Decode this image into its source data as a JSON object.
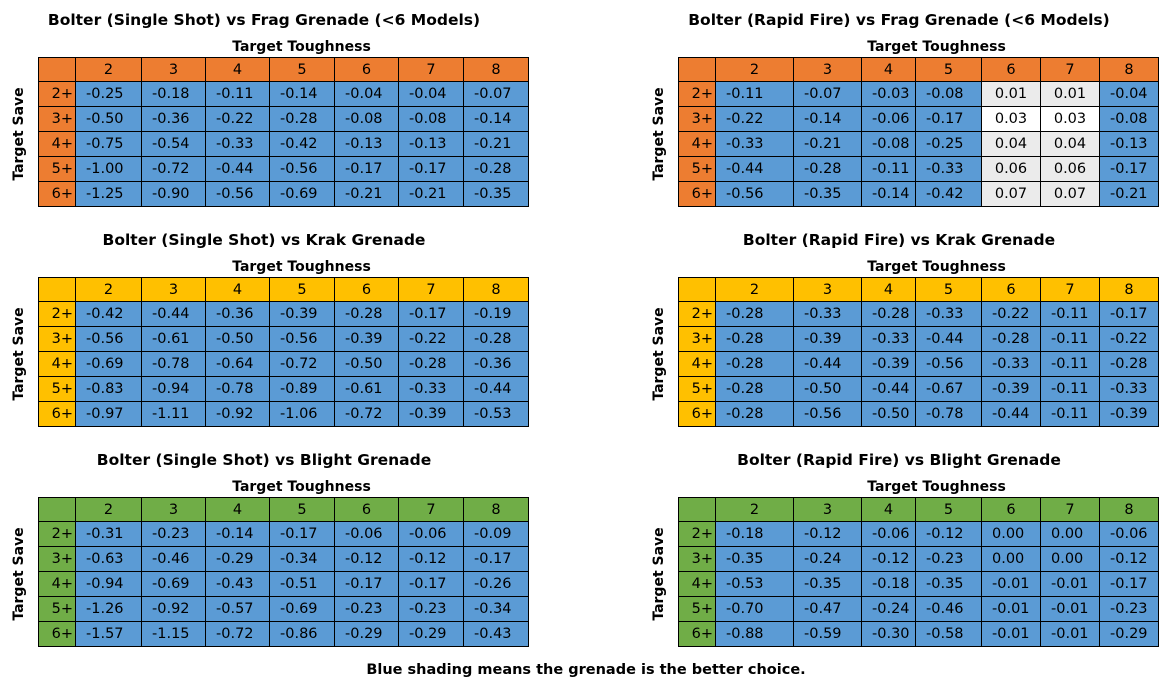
{
  "toughness_label": "Target Toughness",
  "save_label": "Target Save",
  "footer": "Blue shading means the grenade is the better choice.",
  "columns": [
    "2",
    "3",
    "4",
    "5",
    "6",
    "7",
    "8"
  ],
  "rows": [
    "2+",
    "3+",
    "4+",
    "5+",
    "6+"
  ],
  "colors": {
    "frag": "#ed7d31",
    "krak": "#ffc000",
    "blight": "#70ad47",
    "better": "#5b9bd5",
    "worse": "#ebebeb"
  },
  "panels": [
    {
      "id": "single-frag",
      "title": "Bolter (Single Shot) vs Frag Grenade (<6 Models)",
      "color": "frag",
      "values": [
        [
          "-0.25",
          "-0.18",
          "-0.11",
          "-0.14",
          "-0.04",
          "-0.04",
          "-0.07"
        ],
        [
          "-0.50",
          "-0.36",
          "-0.22",
          "-0.28",
          "-0.08",
          "-0.08",
          "-0.14"
        ],
        [
          "-0.75",
          "-0.54",
          "-0.33",
          "-0.42",
          "-0.13",
          "-0.13",
          "-0.21"
        ],
        [
          "-1.00",
          "-0.72",
          "-0.44",
          "-0.56",
          "-0.17",
          "-0.17",
          "-0.28"
        ],
        [
          "-1.25",
          "-0.90",
          "-0.56",
          "-0.69",
          "-0.21",
          "-0.21",
          "-0.35"
        ]
      ]
    },
    {
      "id": "rapid-frag",
      "title": "Bolter (Rapid Fire) vs Frag Grenade (<6 Models)",
      "color": "frag",
      "values": [
        [
          "-0.11",
          "-0.07",
          "-0.03",
          "-0.08",
          "0.01",
          "0.01",
          "-0.04"
        ],
        [
          "-0.22",
          "-0.14",
          "-0.06",
          "-0.17",
          "0.03",
          "0.03",
          "-0.08"
        ],
        [
          "-0.33",
          "-0.21",
          "-0.08",
          "-0.25",
          "0.04",
          "0.04",
          "-0.13"
        ],
        [
          "-0.44",
          "-0.28",
          "-0.11",
          "-0.33",
          "0.06",
          "0.06",
          "-0.17"
        ],
        [
          "-0.56",
          "-0.35",
          "-0.14",
          "-0.42",
          "0.07",
          "0.07",
          "-0.21"
        ]
      ]
    },
    {
      "id": "single-krak",
      "title": "Bolter (Single Shot) vs Krak Grenade",
      "color": "krak",
      "values": [
        [
          "-0.42",
          "-0.44",
          "-0.36",
          "-0.39",
          "-0.28",
          "-0.17",
          "-0.19"
        ],
        [
          "-0.56",
          "-0.61",
          "-0.50",
          "-0.56",
          "-0.39",
          "-0.22",
          "-0.28"
        ],
        [
          "-0.69",
          "-0.78",
          "-0.64",
          "-0.72",
          "-0.50",
          "-0.28",
          "-0.36"
        ],
        [
          "-0.83",
          "-0.94",
          "-0.78",
          "-0.89",
          "-0.61",
          "-0.33",
          "-0.44"
        ],
        [
          "-0.97",
          "-1.11",
          "-0.92",
          "-1.06",
          "-0.72",
          "-0.39",
          "-0.53"
        ]
      ]
    },
    {
      "id": "rapid-krak",
      "title": "Bolter (Rapid Fire) vs Krak Grenade",
      "color": "krak",
      "values": [
        [
          "-0.28",
          "-0.33",
          "-0.28",
          "-0.33",
          "-0.22",
          "-0.11",
          "-0.17"
        ],
        [
          "-0.28",
          "-0.39",
          "-0.33",
          "-0.44",
          "-0.28",
          "-0.11",
          "-0.22"
        ],
        [
          "-0.28",
          "-0.44",
          "-0.39",
          "-0.56",
          "-0.33",
          "-0.11",
          "-0.28"
        ],
        [
          "-0.28",
          "-0.50",
          "-0.44",
          "-0.67",
          "-0.39",
          "-0.11",
          "-0.33"
        ],
        [
          "-0.28",
          "-0.56",
          "-0.50",
          "-0.78",
          "-0.44",
          "-0.11",
          "-0.39"
        ]
      ]
    },
    {
      "id": "single-blight",
      "title": "Bolter (Single Shot) vs Blight Grenade",
      "color": "blight",
      "values": [
        [
          "-0.31",
          "-0.23",
          "-0.14",
          "-0.17",
          "-0.06",
          "-0.06",
          "-0.09"
        ],
        [
          "-0.63",
          "-0.46",
          "-0.29",
          "-0.34",
          "-0.12",
          "-0.12",
          "-0.17"
        ],
        [
          "-0.94",
          "-0.69",
          "-0.43",
          "-0.51",
          "-0.17",
          "-0.17",
          "-0.26"
        ],
        [
          "-1.26",
          "-0.92",
          "-0.57",
          "-0.69",
          "-0.23",
          "-0.23",
          "-0.34"
        ],
        [
          "-1.57",
          "-1.15",
          "-0.72",
          "-0.86",
          "-0.29",
          "-0.29",
          "-0.43"
        ]
      ]
    },
    {
      "id": "rapid-blight",
      "title": "Bolter (Rapid Fire) vs Blight Grenade",
      "color": "blight",
      "values": [
        [
          "-0.18",
          "-0.12",
          "-0.06",
          "-0.12",
          "0.00",
          "0.00",
          "-0.06"
        ],
        [
          "-0.35",
          "-0.24",
          "-0.12",
          "-0.23",
          "0.00",
          "0.00",
          "-0.12"
        ],
        [
          "-0.53",
          "-0.35",
          "-0.18",
          "-0.35",
          "-0.01",
          "-0.01",
          "-0.17"
        ],
        [
          "-0.70",
          "-0.47",
          "-0.24",
          "-0.46",
          "-0.01",
          "-0.01",
          "-0.23"
        ],
        [
          "-0.88",
          "-0.59",
          "-0.30",
          "-0.58",
          "-0.01",
          "-0.01",
          "-0.29"
        ]
      ]
    }
  ]
}
